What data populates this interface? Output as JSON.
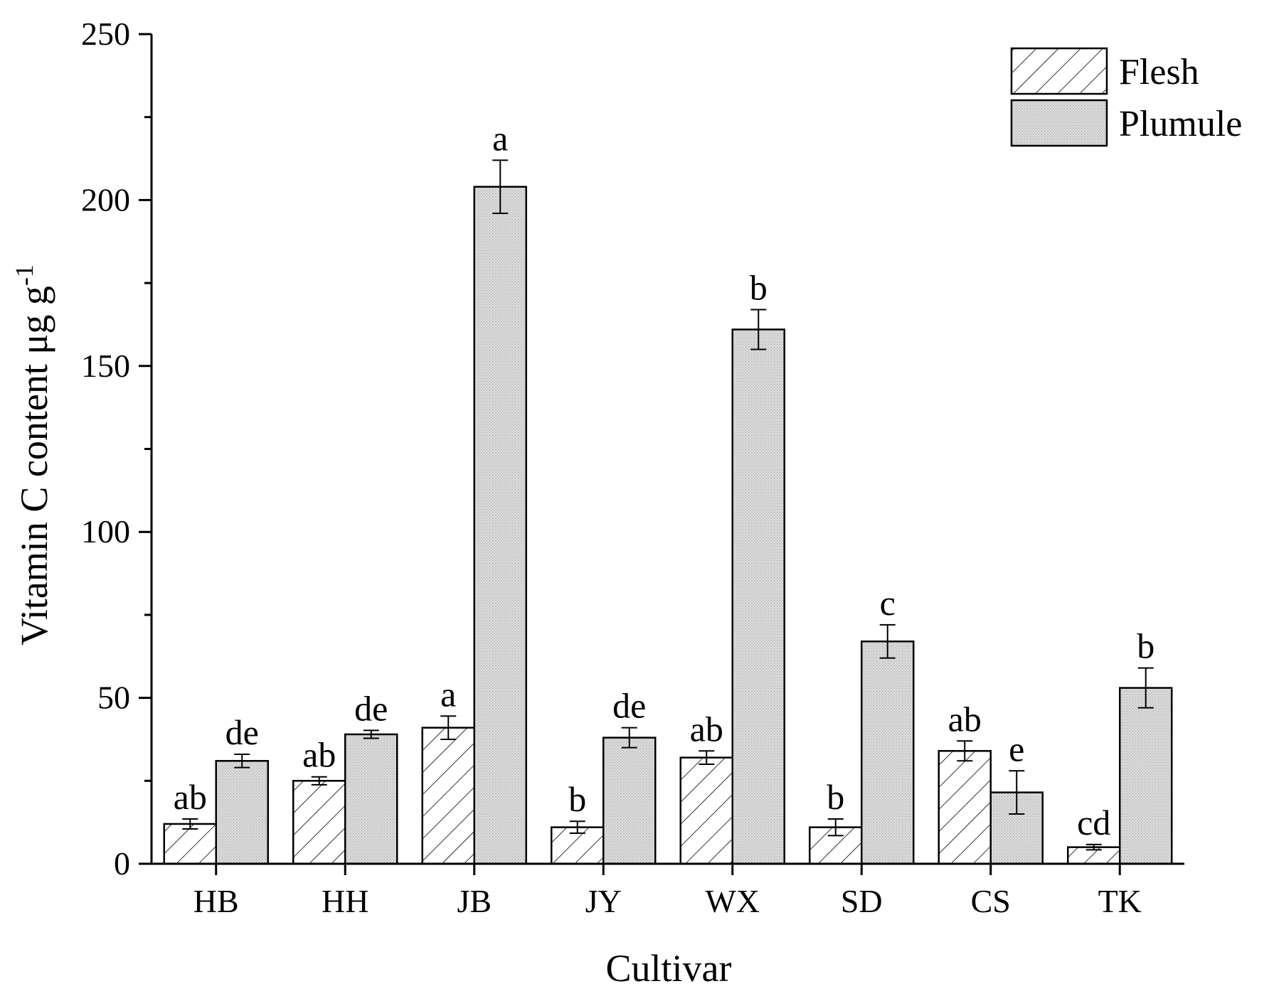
{
  "chart_data": {
    "type": "bar",
    "xlabel": "Cultivar",
    "ylabel": "Vitamin C content μg g",
    "ylabel_superscript": "-1",
    "ylim": [
      0,
      250
    ],
    "yticks": [
      0,
      50,
      100,
      150,
      200,
      250
    ],
    "categories": [
      "HB",
      "HH",
      "JB",
      "JY",
      "WX",
      "SD",
      "CS",
      "TK"
    ],
    "legend_position": "top-right",
    "series": [
      {
        "name": "Flesh",
        "pattern": "hatch",
        "values": [
          12,
          25,
          41,
          11,
          32,
          11,
          34,
          5
        ],
        "errors": [
          1.5,
          1.2,
          3.5,
          1.8,
          2,
          2.5,
          3,
          0.8
        ],
        "labels": [
          "ab",
          "ab",
          "a",
          "b",
          "ab",
          "b",
          "ab",
          "cd"
        ]
      },
      {
        "name": "Plumule",
        "pattern": "dotted",
        "values": [
          31,
          39,
          204,
          38,
          161,
          67,
          21.5,
          53
        ],
        "errors": [
          2,
          1.2,
          8,
          3,
          6,
          5,
          6.5,
          6
        ],
        "labels": [
          "de",
          "de",
          "a",
          "de",
          "b",
          "c",
          "e",
          "b"
        ]
      }
    ],
    "colors": {
      "plumule_fill": "#d9d9d9",
      "axis": "#000000"
    }
  }
}
